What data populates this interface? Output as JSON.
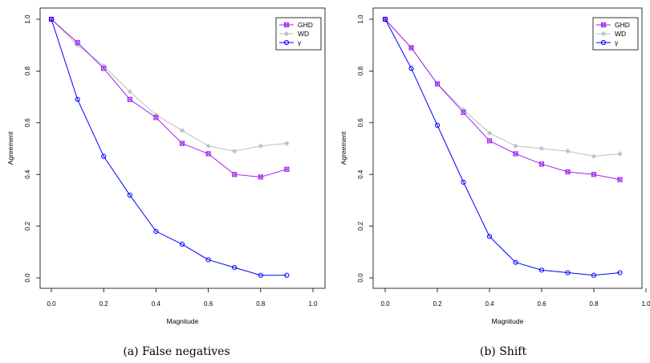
{
  "chart_data": [
    {
      "type": "line",
      "caption": "(a)  False negatives",
      "xlabel": "Magnitude",
      "ylabel": "Agreement",
      "xlim": [
        0.0,
        1.0
      ],
      "ylim": [
        0.0,
        1.0
      ],
      "xticks": [
        "0.0",
        "0.2",
        "0.4",
        "0.6",
        "0.8",
        "1.0"
      ],
      "yticks": [
        "0.0",
        "0.2",
        "0.4",
        "0.6",
        "0.8",
        "1.0"
      ],
      "grid": false,
      "legend_position": "top-right",
      "x": [
        0.0,
        0.1,
        0.2,
        0.3,
        0.4,
        0.5,
        0.6,
        0.7,
        0.8,
        0.9
      ],
      "series": [
        {
          "name": "GHD",
          "color": "#a020f0",
          "marker": "square-x",
          "values": [
            1.0,
            0.91,
            0.81,
            0.69,
            0.62,
            0.52,
            0.48,
            0.4,
            0.39,
            0.42
          ]
        },
        {
          "name": "WD",
          "color": "#bebebe",
          "marker": "asterisk",
          "values": [
            1.0,
            0.9,
            0.82,
            0.72,
            0.63,
            0.57,
            0.51,
            0.49,
            0.51,
            0.52
          ]
        },
        {
          "name": "γ",
          "color": "#0000ff",
          "marker": "circle",
          "values": [
            1.0,
            0.69,
            0.47,
            0.32,
            0.18,
            0.13,
            0.07,
            0.04,
            0.01,
            0.01
          ]
        }
      ]
    },
    {
      "type": "line",
      "caption": "(b)  Shift",
      "xlabel": "Magnitude",
      "ylabel": "Agreement",
      "xlim": [
        0.0,
        1.0
      ],
      "ylim": [
        0.0,
        1.0
      ],
      "xticks": [
        "0.0",
        "0.2",
        "0.4",
        "0.6",
        "0.8",
        "1.0"
      ],
      "yticks": [
        "0.0",
        "0.2",
        "0.4",
        "0.6",
        "0.8",
        "1.0"
      ],
      "grid": false,
      "legend_position": "top-right",
      "x": [
        0.0,
        0.1,
        0.2,
        0.3,
        0.4,
        0.5,
        0.6,
        0.7,
        0.8,
        0.9
      ],
      "series": [
        {
          "name": "GHD",
          "color": "#a020f0",
          "marker": "square-x",
          "values": [
            1.0,
            0.89,
            0.75,
            0.64,
            0.53,
            0.48,
            0.44,
            0.41,
            0.4,
            0.38
          ]
        },
        {
          "name": "WD",
          "color": "#bebebe",
          "marker": "asterisk",
          "values": [
            1.0,
            0.89,
            0.75,
            0.65,
            0.56,
            0.51,
            0.5,
            0.49,
            0.47,
            0.48
          ]
        },
        {
          "name": "γ",
          "color": "#0000ff",
          "marker": "circle",
          "values": [
            1.0,
            0.81,
            0.59,
            0.37,
            0.16,
            0.06,
            0.03,
            0.02,
            0.01,
            0.02
          ]
        }
      ]
    }
  ]
}
